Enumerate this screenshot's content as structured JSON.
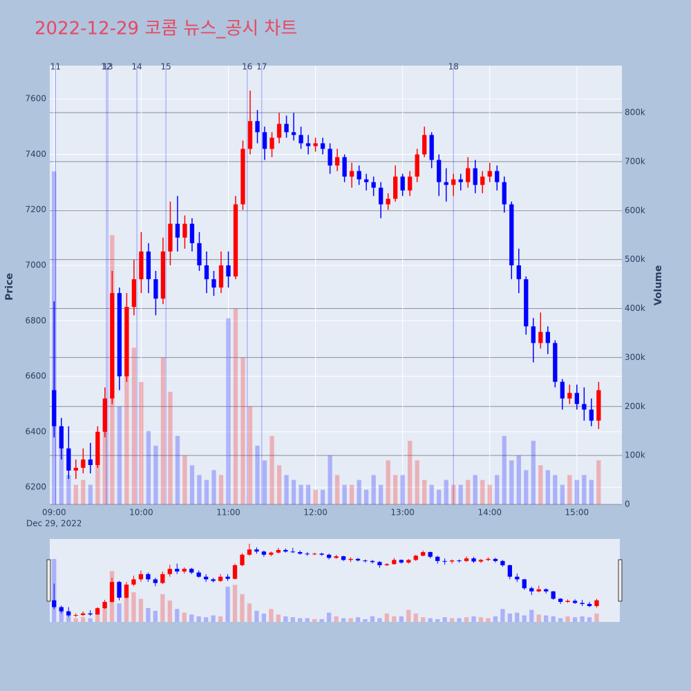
{
  "chart_data": {
    "type": "candlestick",
    "title": "2022-12-29 코콤 뉴스_공시 차트",
    "y_label": "Price",
    "y2_label": "Volume",
    "x_date_label": "Dec 29, 2022",
    "increasing_color": "#ff0000",
    "decreasing_color": "#0000ff",
    "volume_increasing_color": "rgba(255,0,0,0.25)",
    "volume_decreasing_color": "rgba(0,0,255,0.25)",
    "news_color": "rgba(0,0,255,0.35)",
    "xlim": [
      "08:57",
      "15:31"
    ],
    "xticks": [
      "09:00",
      "10:00",
      "11:00",
      "12:00",
      "13:00",
      "14:00",
      "15:00"
    ],
    "ylim": [
      6138,
      7720
    ],
    "yticks": [
      6200,
      6400,
      6600,
      6800,
      7000,
      7200,
      7400,
      7600
    ],
    "y2lim": [
      0,
      896000
    ],
    "y2ticks": [
      0,
      {
        "value": 100000,
        "label": "100k"
      },
      {
        "value": 200000,
        "label": "200k"
      },
      {
        "value": 300000,
        "label": "300k"
      },
      {
        "value": 400000,
        "label": "400k"
      },
      {
        "value": 500000,
        "label": "500k"
      },
      {
        "value": 600000,
        "label": "600k"
      },
      {
        "value": 700000,
        "label": "700k"
      },
      {
        "value": 800000,
        "label": "800k"
      }
    ],
    "news": [
      {
        "label": "11",
        "time": "09:01"
      },
      {
        "label": "12",
        "time": "09:36"
      },
      {
        "label": "13",
        "time": "09:37"
      },
      {
        "label": "14",
        "time": "09:57"
      },
      {
        "label": "15",
        "time": "10:17"
      },
      {
        "label": "16",
        "time": "11:13"
      },
      {
        "label": "17",
        "time": "11:23"
      },
      {
        "label": "18",
        "time": "13:35"
      }
    ],
    "x": [
      "09:00",
      "09:05",
      "09:10",
      "09:15",
      "09:20",
      "09:25",
      "09:30",
      "09:35",
      "09:40",
      "09:45",
      "09:50",
      "09:55",
      "10:00",
      "10:05",
      "10:10",
      "10:15",
      "10:20",
      "10:25",
      "10:30",
      "10:35",
      "10:40",
      "10:45",
      "10:50",
      "10:55",
      "11:00",
      "11:05",
      "11:10",
      "11:15",
      "11:20",
      "11:25",
      "11:30",
      "11:35",
      "11:40",
      "11:45",
      "11:50",
      "11:55",
      "12:00",
      "12:05",
      "12:10",
      "12:15",
      "12:20",
      "12:25",
      "12:30",
      "12:35",
      "12:40",
      "12:45",
      "12:50",
      "12:55",
      "13:00",
      "13:05",
      "13:10",
      "13:15",
      "13:20",
      "13:25",
      "13:30",
      "13:35",
      "13:40",
      "13:45",
      "13:50",
      "13:55",
      "14:00",
      "14:05",
      "14:10",
      "14:15",
      "14:20",
      "14:25",
      "14:30",
      "14:35",
      "14:40",
      "14:45",
      "14:50",
      "14:55",
      "15:00",
      "15:05",
      "15:10",
      "15:15"
    ],
    "open": [
      6550,
      6420,
      6340,
      6260,
      6270,
      6300,
      6280,
      6400,
      6520,
      6900,
      6600,
      6850,
      6950,
      7050,
      6950,
      6880,
      7050,
      7150,
      7100,
      7150,
      7080,
      7000,
      6950,
      6920,
      7000,
      6960,
      7220,
      7420,
      7520,
      7480,
      7420,
      7460,
      7510,
      7480,
      7470,
      7440,
      7430,
      7440,
      7420,
      7360,
      7390,
      7320,
      7340,
      7310,
      7300,
      7280,
      7220,
      7240,
      7320,
      7270,
      7320,
      7400,
      7470,
      7380,
      7300,
      7290,
      7310,
      7300,
      7350,
      7290,
      7320,
      7340,
      7300,
      7220,
      7000,
      6950,
      6780,
      6720,
      6760,
      6720,
      6580,
      6520,
      6540,
      6500,
      6480,
      6440
    ],
    "high": [
      6870,
      6450,
      6420,
      6300,
      6340,
      6360,
      6420,
      6560,
      6980,
      6920,
      6900,
      7020,
      7120,
      7080,
      6980,
      7100,
      7230,
      7250,
      7180,
      7170,
      7120,
      7050,
      6980,
      7050,
      7050,
      7250,
      7450,
      7630,
      7560,
      7500,
      7480,
      7550,
      7540,
      7550,
      7500,
      7470,
      7460,
      7460,
      7440,
      7420,
      7400,
      7370,
      7360,
      7330,
      7320,
      7300,
      7260,
      7360,
      7330,
      7340,
      7420,
      7500,
      7480,
      7400,
      7350,
      7330,
      7330,
      7390,
      7380,
      7340,
      7370,
      7360,
      7320,
      7230,
      7060,
      6960,
      6810,
      6830,
      6780,
      6730,
      6590,
      6570,
      6570,
      6560,
      6520,
      6580
    ],
    "low": [
      6380,
      6300,
      6230,
      6230,
      6250,
      6250,
      6270,
      6380,
      6500,
      6550,
      6580,
      6820,
      6900,
      6900,
      6820,
      6860,
      7000,
      7050,
      7060,
      7050,
      6980,
      6900,
      6890,
      6900,
      6920,
      6950,
      7200,
      7400,
      7440,
      7380,
      7390,
      7440,
      7460,
      7450,
      7420,
      7400,
      7410,
      7400,
      7330,
      7340,
      7300,
      7280,
      7290,
      7270,
      7250,
      7170,
      7200,
      7230,
      7250,
      7250,
      7300,
      7390,
      7350,
      7250,
      7230,
      7250,
      7270,
      7280,
      7260,
      7260,
      7300,
      7270,
      7190,
      6950,
      6900,
      6750,
      6650,
      6700,
      6680,
      6560,
      6480,
      6500,
      6480,
      6440,
      6420,
      6410
    ],
    "close": [
      6420,
      6340,
      6260,
      6270,
      6300,
      6280,
      6400,
      6520,
      6900,
      6600,
      6850,
      6950,
      7050,
      6950,
      6880,
      7050,
      7150,
      7100,
      7150,
      7080,
      7000,
      6950,
      6920,
      7000,
      6960,
      7220,
      7420,
      7520,
      7480,
      7420,
      7460,
      7510,
      7480,
      7470,
      7440,
      7430,
      7440,
      7420,
      7360,
      7390,
      7320,
      7340,
      7310,
      7300,
      7280,
      7220,
      7240,
      7320,
      7270,
      7320,
      7400,
      7470,
      7380,
      7300,
      7290,
      7310,
      7300,
      7350,
      7290,
      7320,
      7340,
      7300,
      7220,
      7000,
      6950,
      6780,
      6720,
      6760,
      6720,
      6580,
      6520,
      6540,
      6500,
      6480,
      6440,
      6550
    ],
    "volume": [
      680000,
      150000,
      60000,
      40000,
      50000,
      40000,
      120000,
      200000,
      550000,
      200000,
      300000,
      320000,
      250000,
      150000,
      120000,
      300000,
      230000,
      140000,
      100000,
      80000,
      60000,
      50000,
      70000,
      60000,
      380000,
      400000,
      300000,
      200000,
      120000,
      90000,
      140000,
      80000,
      60000,
      50000,
      40000,
      40000,
      30000,
      30000,
      100000,
      60000,
      40000,
      40000,
      50000,
      30000,
      60000,
      40000,
      90000,
      60000,
      60000,
      130000,
      90000,
      50000,
      40000,
      30000,
      50000,
      40000,
      40000,
      50000,
      60000,
      50000,
      40000,
      60000,
      140000,
      90000,
      100000,
      70000,
      130000,
      80000,
      70000,
      60000,
      40000,
      60000,
      50000,
      60000,
      50000,
      90000
    ]
  }
}
